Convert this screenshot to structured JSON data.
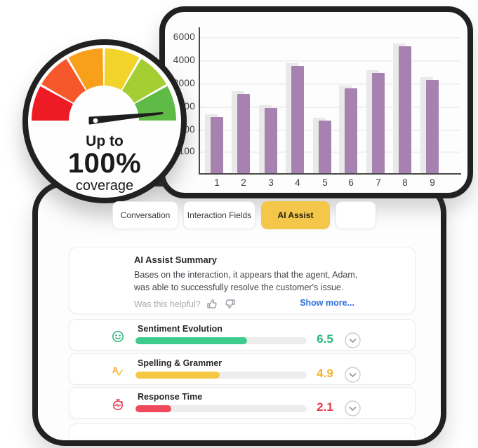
{
  "gauge": {
    "line1": "Up to",
    "line2": "100%",
    "line3": "coverage",
    "segment_colors": [
      "#ed1c24",
      "#f6582b",
      "#f9a01b",
      "#f1d32a",
      "#a5ce33",
      "#5fba46"
    ],
    "needle_color": "#1e1e1e"
  },
  "chart_data": {
    "type": "bar",
    "categories": [
      "1",
      "2",
      "3",
      "4",
      "5",
      "6",
      "7",
      "8",
      "9"
    ],
    "values": [
      750,
      1500,
      950,
      3450,
      680,
      1760,
      2850,
      5180,
      2250
    ],
    "y_ticks": [
      100,
      500,
      1000,
      2000,
      4000,
      6000
    ],
    "title": "",
    "xlabel": "",
    "ylabel": "",
    "grid": true,
    "legend": false,
    "bar_color": "#a782b0",
    "shadow_bar_color": "#e9e9e9"
  },
  "tabs": {
    "items": [
      {
        "label": "Conversation",
        "active": false
      },
      {
        "label": "Interaction Fields",
        "active": false
      },
      {
        "label": "AI Assist",
        "active": true
      },
      {
        "label": "",
        "active": false
      }
    ]
  },
  "summary": {
    "title": "AI Assist Summary",
    "body": "Bases on the interaction, it appears that the agent, Adam, was able to successfully resolve the customer's issue.",
    "helpful_prompt": "Was this helpful?",
    "show_more": "Show more..."
  },
  "metrics": {
    "rows": [
      {
        "label": "Sentiment Evolution",
        "value": "6.5",
        "fill_color": "#3ecb8e",
        "value_color": "#29b57c",
        "icon": "smiley-icon"
      },
      {
        "label": "Spelling & Grammer",
        "value": "4.9",
        "fill_color": "#f7c843",
        "value_color": "#f2b32c",
        "icon": "spellcheck-icon"
      },
      {
        "label": "Response Time",
        "value": "2.1",
        "fill_color": "#f0495c",
        "value_color": "#e93a4e",
        "icon": "stopwatch-icon"
      }
    ]
  }
}
